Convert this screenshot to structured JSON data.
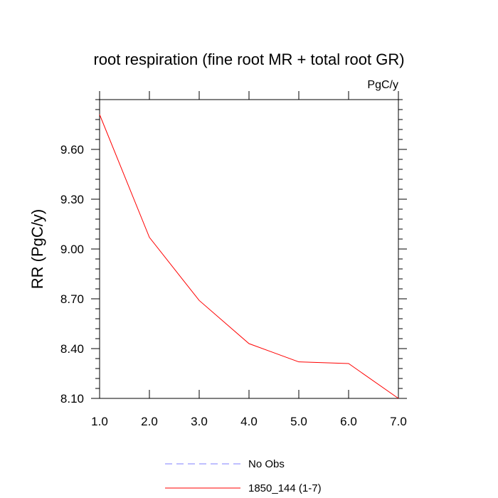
{
  "chart_data": {
    "type": "line",
    "title": "root respiration (fine root MR + total root GR)",
    "units": "PgC/y",
    "xlabel": "",
    "ylabel": "RR  (PgC/y)",
    "xlim": [
      1.0,
      7.0
    ],
    "ylim": [
      8.1,
      9.9
    ],
    "x_ticks": [
      "1.0",
      "2.0",
      "3.0",
      "4.0",
      "5.0",
      "6.0",
      "7.0"
    ],
    "y_ticks": [
      "8.10",
      "8.40",
      "8.70",
      "9.00",
      "9.30",
      "9.60"
    ],
    "y_tick_values": [
      8.1,
      8.4,
      8.7,
      9.0,
      9.3,
      9.6
    ],
    "x_tick_values": [
      1.0,
      2.0,
      3.0,
      4.0,
      5.0,
      6.0,
      7.0
    ],
    "grid": false,
    "legend_position": "bottom",
    "series": [
      {
        "name": "No Obs",
        "color": "#7f7fff",
        "dashed": true,
        "x": [],
        "values": []
      },
      {
        "name": "1850_144 (1-7)",
        "color": "#ff0000",
        "dashed": false,
        "x": [
          1.0,
          2.0,
          3.0,
          4.0,
          5.0,
          6.0,
          7.0
        ],
        "values": [
          9.81,
          9.07,
          8.69,
          8.43,
          8.32,
          8.31,
          8.1
        ]
      }
    ]
  }
}
